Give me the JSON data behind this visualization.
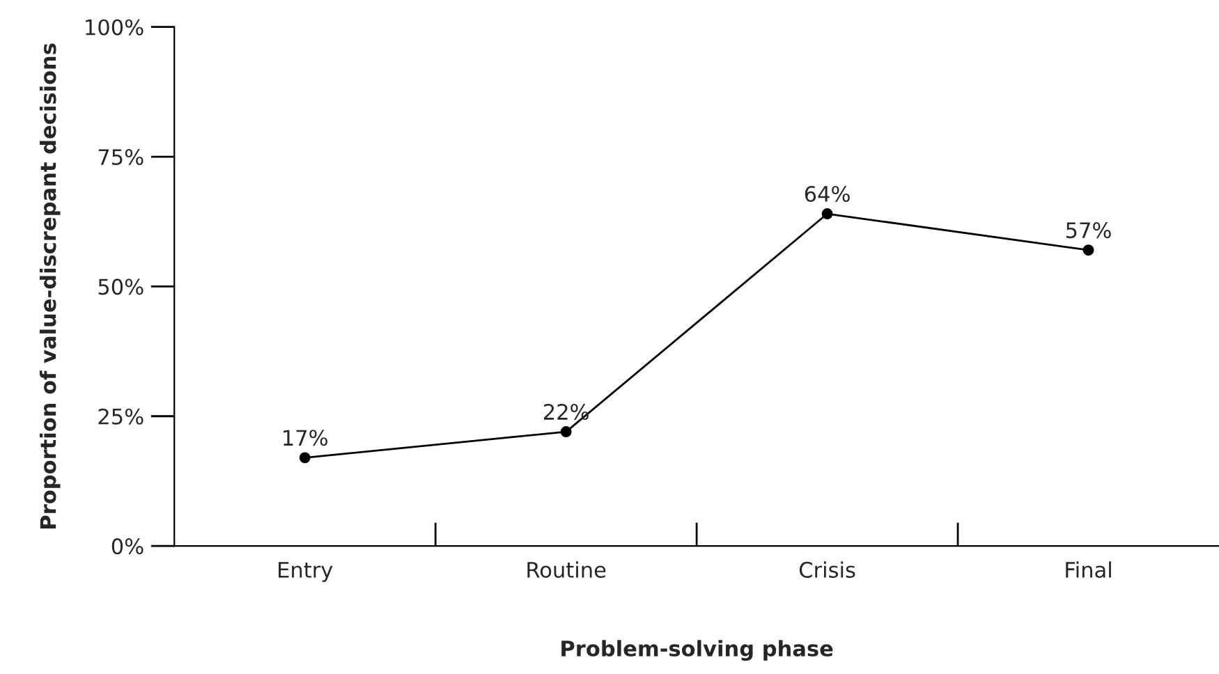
{
  "chart_data": {
    "type": "line",
    "xlabel": "Problem-solving phase",
    "ylabel": "Proportion of value-discrepant decisions",
    "categories": [
      "Entry",
      "Routine",
      "Crisis",
      "Final"
    ],
    "series": [
      {
        "color": "#000000",
        "values": [
          17,
          22,
          64,
          57
        ],
        "value_labels": [
          "17%",
          "22%",
          "64%",
          "57%"
        ]
      }
    ],
    "ylim": [
      0,
      100
    ],
    "yticks": [
      {
        "value": 0,
        "label": "0%"
      },
      {
        "value": 25,
        "label": "25%"
      },
      {
        "value": 50,
        "label": "50%"
      },
      {
        "value": 75,
        "label": "75%"
      },
      {
        "value": 100,
        "label": "100%"
      }
    ],
    "marker": "circle",
    "line_style": "solid",
    "grid": false,
    "legend": false
  }
}
